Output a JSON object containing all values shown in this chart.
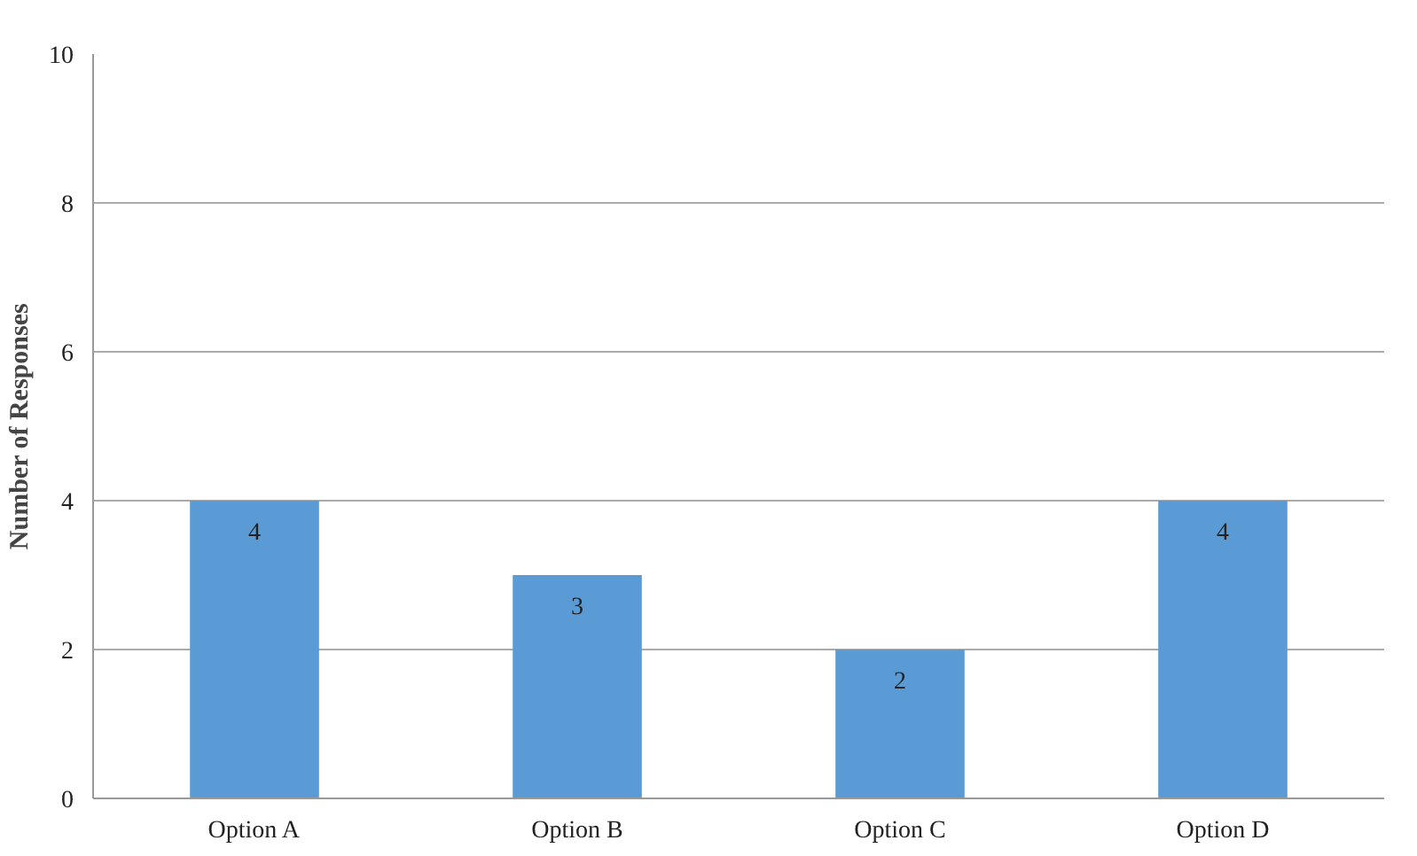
{
  "chart_data": {
    "type": "bar",
    "ylabel": "Number of Responses",
    "categories": [
      "Option A",
      "Option B",
      "Option C",
      "Option D"
    ],
    "values": [
      4,
      3,
      2,
      4
    ],
    "color": "#5b9bd5",
    "ylim": [
      0,
      10
    ],
    "yticks": [
      0,
      2,
      4,
      6,
      8,
      10
    ],
    "grid": "y",
    "data_labels": true
  }
}
